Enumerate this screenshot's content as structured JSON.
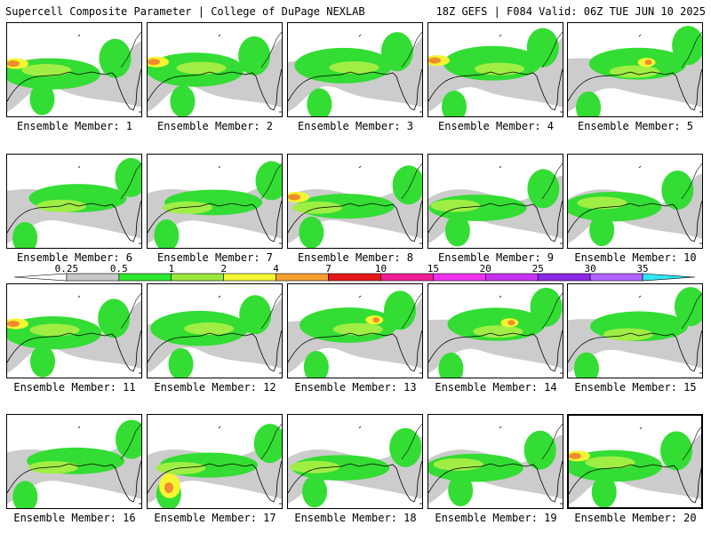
{
  "header": {
    "left": "Supercell Composite Parameter | College of DuPage NEXLAB",
    "right": "18Z GEFS | F084 Valid: 06Z TUE JUN 10 2025"
  },
  "caption_prefix": "Ensemble Member: ",
  "members": [
    {
      "label": "Ensemble Member: 1",
      "hot": "west"
    },
    {
      "label": "Ensemble Member: 2",
      "hot": "west"
    },
    {
      "label": "Ensemble Member: 3",
      "hot": "none"
    },
    {
      "label": "Ensemble Member: 4",
      "hot": "west"
    },
    {
      "label": "Ensemble Member: 5",
      "hot": "center"
    },
    {
      "label": "Ensemble Member: 6",
      "hot": "none"
    },
    {
      "label": "Ensemble Member: 7",
      "hot": "none"
    },
    {
      "label": "Ensemble Member: 8",
      "hot": "west"
    },
    {
      "label": "Ensemble Member: 9",
      "hot": "none"
    },
    {
      "label": "Ensemble Member: 10",
      "hot": "none"
    },
    {
      "label": "Ensemble Member: 11",
      "hot": "west"
    },
    {
      "label": "Ensemble Member: 12",
      "hot": "none"
    },
    {
      "label": "Ensemble Member: 13",
      "hot": "center"
    },
    {
      "label": "Ensemble Member: 14",
      "hot": "center"
    },
    {
      "label": "Ensemble Member: 15",
      "hot": "none"
    },
    {
      "label": "Ensemble Member: 16",
      "hot": "none"
    },
    {
      "label": "Ensemble Member: 17",
      "hot": "south"
    },
    {
      "label": "Ensemble Member: 18",
      "hot": "none"
    },
    {
      "label": "Ensemble Member: 19",
      "hot": "none"
    },
    {
      "label": "Ensemble Member: 20",
      "hot": "west"
    }
  ],
  "colorbar": {
    "ticks": [
      "0.25",
      "0.5",
      "1",
      "2",
      "4",
      "7",
      "10",
      "15",
      "20",
      "25",
      "30",
      "35"
    ],
    "colors": [
      "#ffffff",
      "#c8c8c8",
      "#2ee82e",
      "#9be83c",
      "#f5f532",
      "#f5a031",
      "#e61919",
      "#f01e96",
      "#f032f0",
      "#c832f0",
      "#8c28e6",
      "#b464ff",
      "#32e6f5"
    ]
  },
  "map_colors": {
    "gray": "#cccccc",
    "green": "#33dd33",
    "lime": "#a0ee44",
    "yellow": "#f5f532",
    "orange": "#f08c2d",
    "red": "#e61919",
    "line": "#000000"
  }
}
